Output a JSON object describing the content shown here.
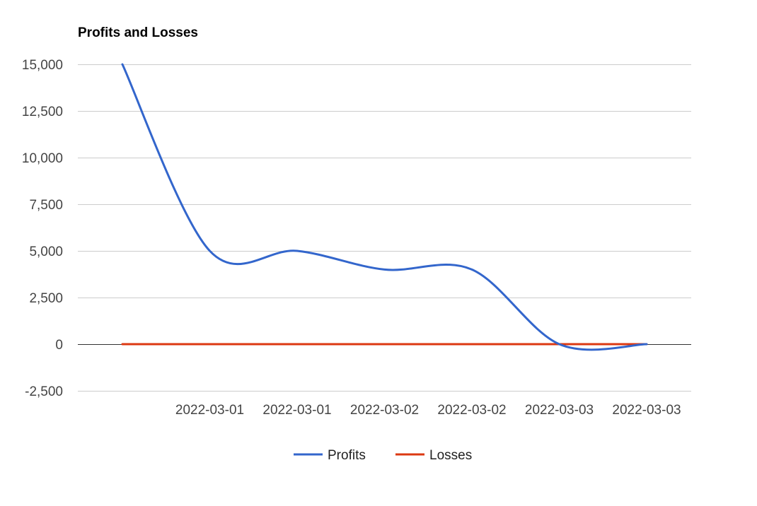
{
  "chart_data": {
    "type": "line",
    "title": "Profits and Losses",
    "xlabel": "",
    "ylabel": "",
    "x_tick_labels": [
      "2022-03-01",
      "2022-03-01",
      "2022-03-02",
      "2022-03-02",
      "2022-03-03",
      "2022-03-03"
    ],
    "ylim": [
      -2500,
      15000
    ],
    "y_ticks": [
      -2500,
      0,
      2500,
      5000,
      7500,
      10000,
      12500,
      15000
    ],
    "y_tick_labels": [
      "-2,500",
      "0",
      "2,500",
      "5,000",
      "7,500",
      "10,000",
      "12,500",
      "15,000"
    ],
    "curve_type": "smooth",
    "grid": true,
    "legend_position": "bottom",
    "series": [
      {
        "name": "Profits",
        "color": "#3366cc",
        "values": [
          15000,
          5000,
          5000,
          4000,
          4000,
          0,
          0
        ]
      },
      {
        "name": "Losses",
        "color": "#dc3912",
        "values": [
          0,
          0,
          0,
          0,
          0,
          0,
          0
        ]
      }
    ]
  }
}
